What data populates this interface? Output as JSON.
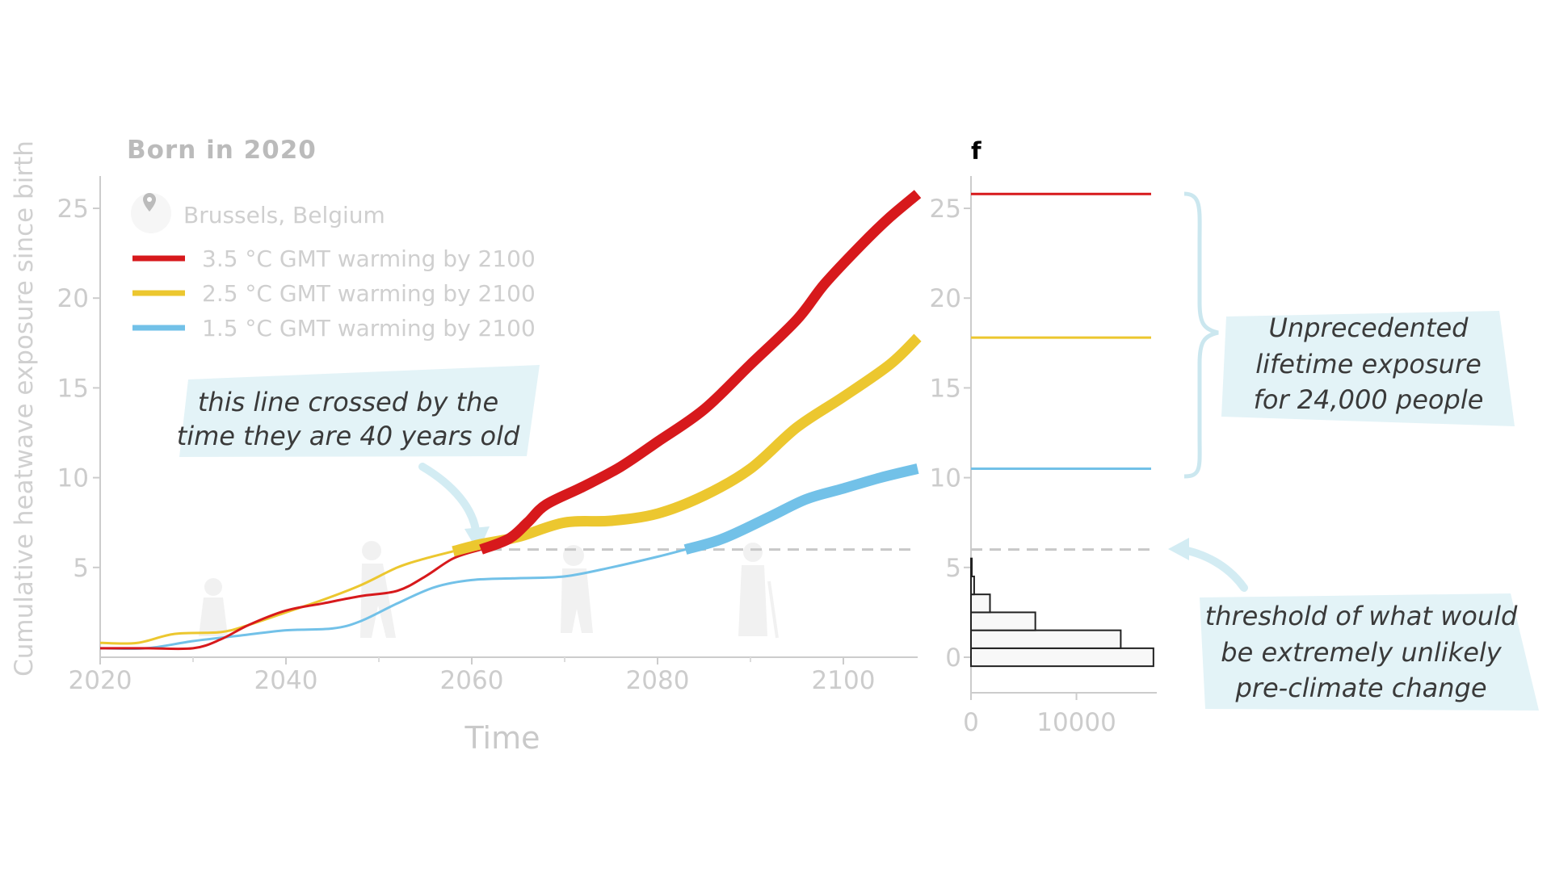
{
  "chart_data": [
    {
      "type": "line",
      "title": "Born in 2020",
      "location": "Brussels, Belgium",
      "xlabel": "Time",
      "ylabel": "Cumulative heatwave exposure since birth",
      "xlim": [
        2020,
        2108
      ],
      "ylim": [
        0,
        27
      ],
      "x_ticks": [
        2020,
        2040,
        2060,
        2080,
        2100
      ],
      "x_tick_labels": [
        "2020",
        "2040",
        "2060",
        "2080",
        "2100"
      ],
      "y_ticks": [
        5,
        10,
        15,
        20,
        25
      ],
      "y_tick_labels": [
        "5",
        "10",
        "15",
        "20",
        "25"
      ],
      "threshold": 6,
      "series": [
        {
          "name": "3.5 °C GMT warming by 2100",
          "color": "#d7191c",
          "x": [
            2020,
            2025,
            2030,
            2033,
            2036,
            2040,
            2044,
            2048,
            2052,
            2055,
            2058,
            2061,
            2064,
            2066,
            2068,
            2072,
            2076,
            2080,
            2085,
            2090,
            2095,
            2098,
            2102,
            2105,
            2108
          ],
          "y": [
            0.5,
            0.5,
            0.5,
            1.0,
            1.8,
            2.6,
            3.0,
            3.4,
            3.7,
            4.5,
            5.5,
            6.0,
            6.6,
            7.5,
            8.5,
            9.5,
            10.6,
            12.0,
            13.8,
            16.3,
            18.8,
            20.8,
            23.0,
            24.5,
            25.8
          ],
          "thick_from": 2061
        },
        {
          "name": "2.5 °C GMT warming by 2100",
          "color": "#ecc72f",
          "x": [
            2020,
            2024,
            2028,
            2033,
            2036,
            2040,
            2044,
            2048,
            2052,
            2055,
            2058,
            2061,
            2065,
            2070,
            2075,
            2080,
            2085,
            2090,
            2095,
            2100,
            2105,
            2108
          ],
          "y": [
            0.8,
            0.8,
            1.3,
            1.4,
            1.8,
            2.5,
            3.2,
            4.0,
            5.0,
            5.5,
            5.9,
            6.3,
            6.7,
            7.5,
            7.6,
            8.0,
            9.0,
            10.5,
            12.8,
            14.5,
            16.3,
            17.8
          ],
          "thick_from": 2058
        },
        {
          "name": "1.5 °C GMT warming by 2100",
          "color": "#72c1e8",
          "x": [
            2020,
            2025,
            2030,
            2035,
            2040,
            2045,
            2048,
            2052,
            2056,
            2060,
            2065,
            2070,
            2075,
            2080,
            2083,
            2087,
            2092,
            2096,
            2100,
            2104,
            2108
          ],
          "y": [
            0.5,
            0.5,
            0.9,
            1.2,
            1.5,
            1.6,
            2.0,
            3.0,
            3.9,
            4.3,
            4.4,
            4.5,
            5.0,
            5.6,
            6.0,
            6.6,
            7.8,
            8.8,
            9.4,
            10.0,
            10.5
          ],
          "thick_from": 2083
        }
      ]
    },
    {
      "type": "histogram",
      "panel_label": "f",
      "orientation": "horizontal",
      "xlim": [
        0,
        18000
      ],
      "x_ticks": [
        0,
        10000
      ],
      "x_tick_labels": [
        "0",
        "10000"
      ],
      "ylim": [
        0,
        27
      ],
      "y_ticks": [
        0,
        5,
        10,
        15,
        20,
        25
      ],
      "y_tick_labels": [
        "0",
        "5",
        "10",
        "15",
        "20",
        "25"
      ],
      "bins": [
        {
          "y0": -0.5,
          "y1": 0.5,
          "count": 17300
        },
        {
          "y0": 0.5,
          "y1": 1.5,
          "count": 14200
        },
        {
          "y0": 1.5,
          "y1": 2.5,
          "count": 6100
        },
        {
          "y0": 2.5,
          "y1": 3.5,
          "count": 1800
        },
        {
          "y0": 3.5,
          "y1": 4.5,
          "count": 300
        },
        {
          "y0": 4.5,
          "y1": 5.5,
          "count": 80
        }
      ],
      "threshold": 6,
      "reference_levels": [
        {
          "name": "3.5 °C",
          "value": 25.8,
          "color": "#d7191c"
        },
        {
          "name": "2.5 °C",
          "value": 17.8,
          "color": "#ecc72f"
        },
        {
          "name": "1.5 °C",
          "value": 10.5,
          "color": "#72c1e8"
        }
      ]
    }
  ],
  "annotations": {
    "crossed_line": [
      "this line crossed by the",
      "time they are 40 years old"
    ],
    "unprecedented": [
      "Unprecedented",
      "lifetime exposure",
      "for 24,000 people"
    ],
    "threshold": [
      "threshold of what would",
      "be extremely unlikely",
      "pre-climate change"
    ]
  },
  "colors": {
    "annotation_bg": "#e3f3f7",
    "axis": "#cccccc",
    "threshold": "#c8c8c8",
    "brace": "#cbe7ef"
  },
  "icons": {
    "location": "map-pin-icon"
  }
}
